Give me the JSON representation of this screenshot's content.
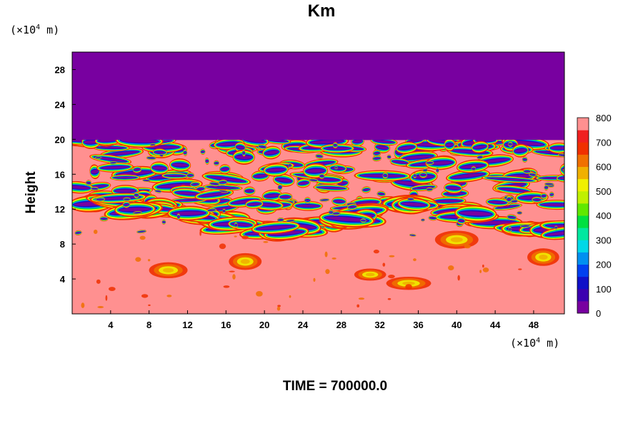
{
  "title": "Km",
  "y_unit": {
    "prefix": "(×10",
    "exp": "4",
    "suffix": " m)"
  },
  "x_unit": {
    "prefix": "(×10",
    "exp": "4",
    "suffix": " m)"
  },
  "ylabel": "Height",
  "time_label": "TIME = 700000.0",
  "chart_data": {
    "type": "heatmap",
    "title": "Km",
    "xlabel": "",
    "ylabel": "Height",
    "x_unit_text": "(×10^4 m)",
    "y_unit_text": "(×10^4 m)",
    "xlim": [
      0,
      51.2
    ],
    "ylim": [
      0,
      30
    ],
    "x_ticks": [
      4,
      8,
      12,
      16,
      20,
      24,
      28,
      32,
      36,
      40,
      44,
      48
    ],
    "y_ticks": [
      4,
      8,
      12,
      16,
      20,
      24,
      28
    ],
    "colorbar": {
      "min": 0,
      "max": 800,
      "step": 50,
      "tick_labels": [
        0,
        100,
        200,
        300,
        400,
        500,
        600,
        700,
        800
      ],
      "colors": [
        "#7800a0",
        "#3c00b0",
        "#1010c8",
        "#0040f0",
        "#0090f0",
        "#00d8e8",
        "#00e8a0",
        "#00e040",
        "#60e800",
        "#c0f000",
        "#f0f000",
        "#f0b000",
        "#f07000",
        "#f03000",
        "#f02020",
        "#ff9090"
      ]
    },
    "field_summary": {
      "above_20": "uniform value 0 (purple)",
      "below_20": "mostly saturated near 800 (pink) with turbulent low-value streaks",
      "low_value_band_heights": [
        19,
        16,
        13.5,
        11.5,
        10.5
      ],
      "high_value_patches": [
        {
          "x": 10,
          "y": 5
        },
        {
          "x": 18,
          "y": 6
        },
        {
          "x": 31,
          "y": 4.5
        },
        {
          "x": 35,
          "y": 3.5
        },
        {
          "x": 40,
          "y": 8.5
        },
        {
          "x": 49,
          "y": 6.5
        }
      ]
    },
    "time": 700000.0
  }
}
